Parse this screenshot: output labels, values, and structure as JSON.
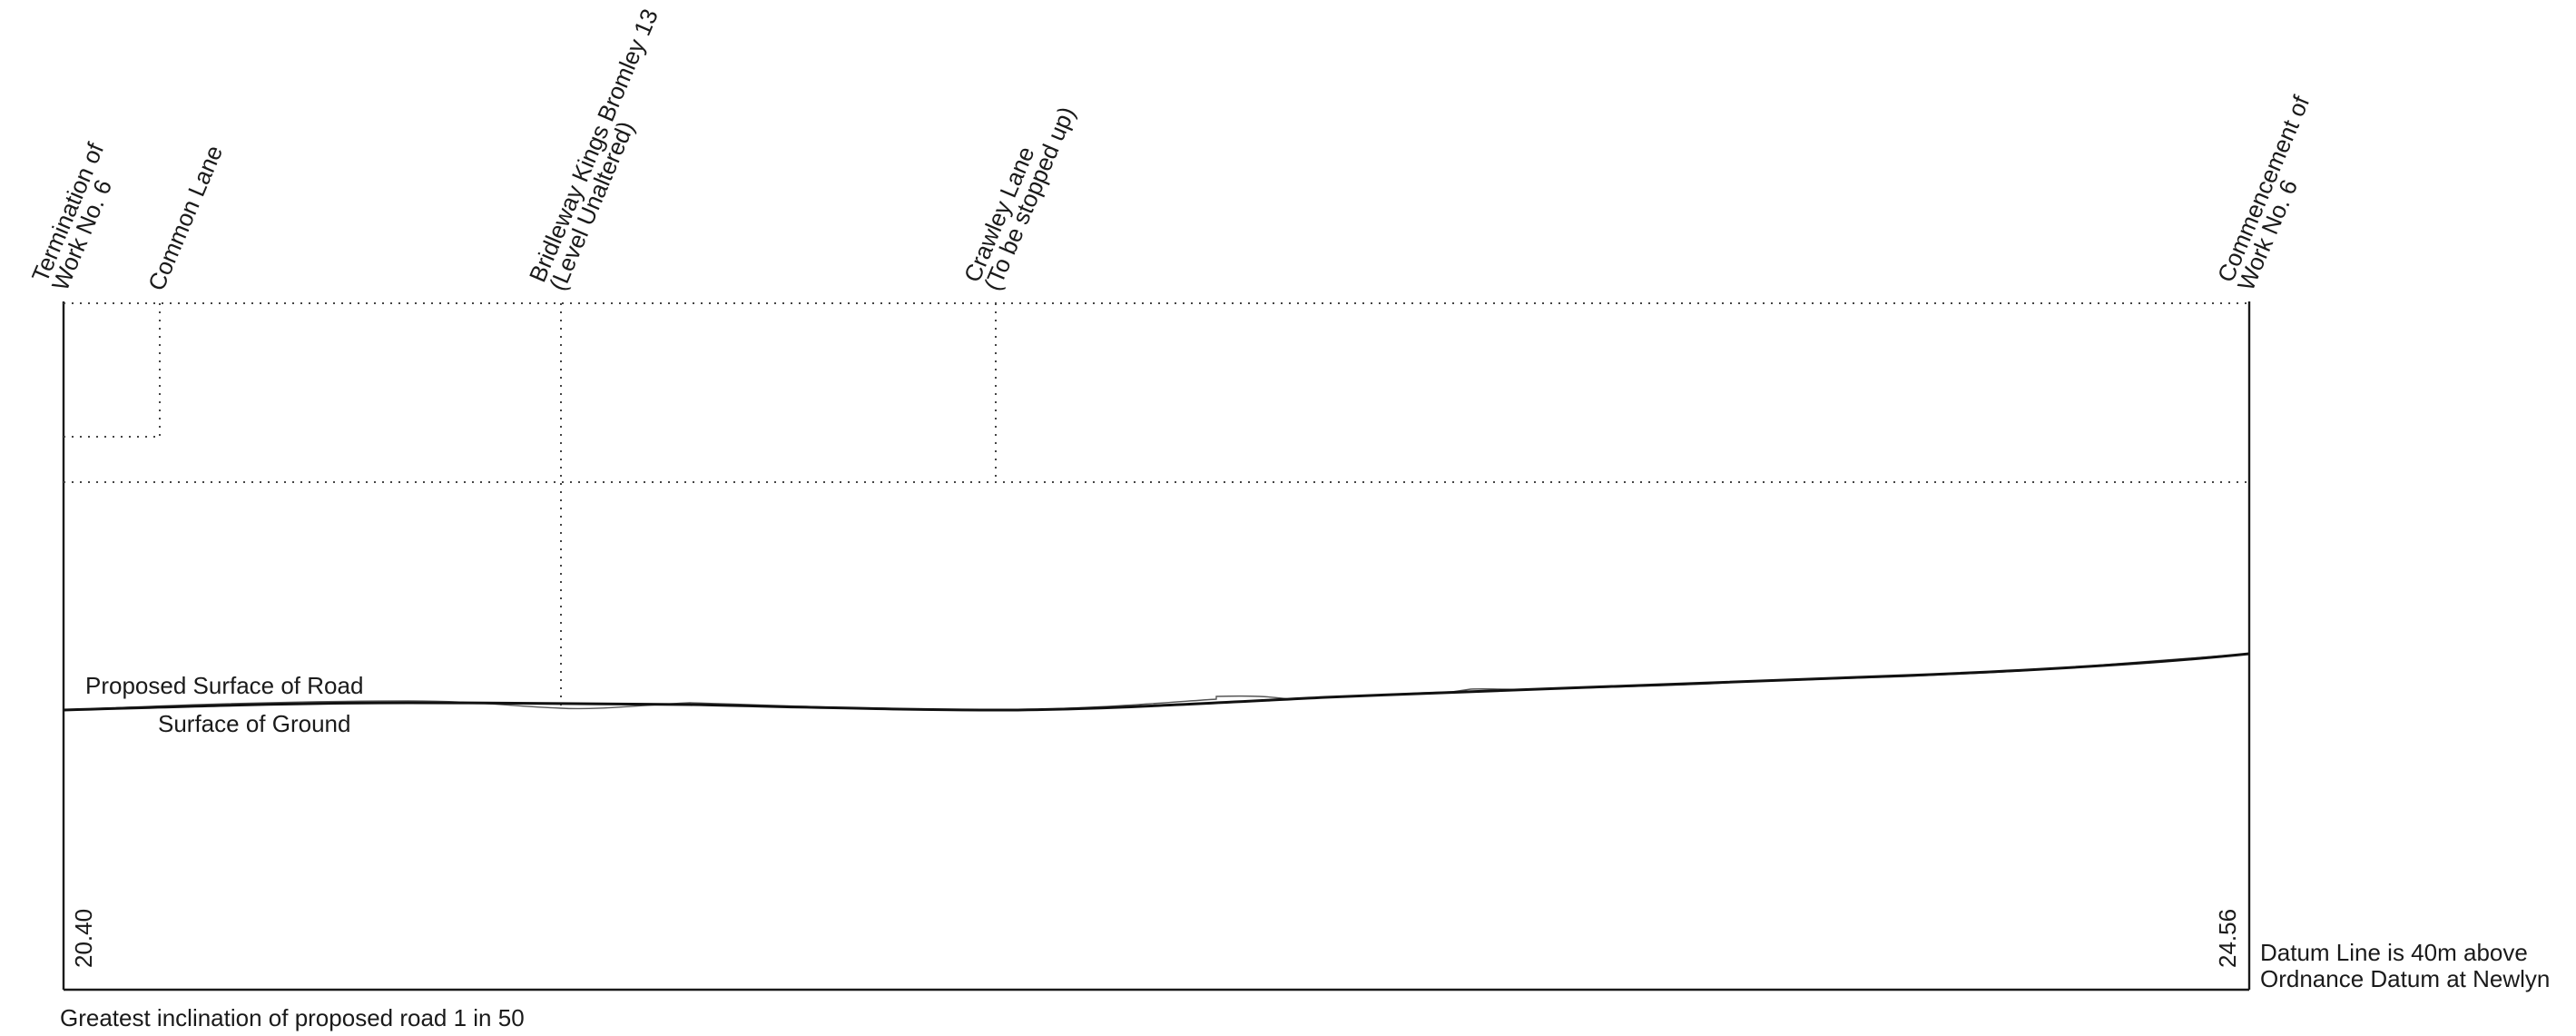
{
  "profile": {
    "features": [
      {
        "id": "termination",
        "lines": [
          "Termination of",
          "Work No. 6"
        ]
      },
      {
        "id": "common-lane",
        "lines": [
          "Common Lane"
        ]
      },
      {
        "id": "bridleway",
        "lines": [
          "Bridleway Kings Bromley 13",
          "(Level Unaltered)"
        ]
      },
      {
        "id": "crawley-lane",
        "lines": [
          "Crawley Lane",
          "(To be stopped up)"
        ]
      },
      {
        "id": "commencement",
        "lines": [
          "Commencement of",
          "Work No. 6"
        ]
      }
    ],
    "proposed_surface_label": "Proposed Surface of Road",
    "ground_surface_label": "Surface of Ground",
    "start_level": "20.40",
    "end_level": "24.56",
    "datum_note": [
      "Datum Line is 40m above",
      "Ordnance Datum at Newlyn"
    ],
    "inclination_note": "Greatest inclination of proposed road 1 in 50"
  }
}
